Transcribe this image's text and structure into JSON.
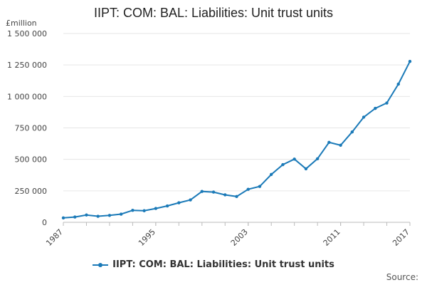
{
  "title": "IIPT: COM: BAL: Liabilities: Unit trust units",
  "legend_label": "IIPT: COM: BAL: Liabilities: Unit trust units",
  "source_label": "Source:",
  "colors": {
    "series": "#1b7ab8",
    "grid": "#e6e6e6",
    "axis": "#bbbbbb"
  },
  "chart_data": {
    "type": "line",
    "title": "IIPT: COM: BAL: Liabilities: Unit trust units",
    "ylabel": "£million",
    "xlabel": "",
    "ylim": [
      0,
      1500000
    ],
    "xlim": [
      1987,
      2017
    ],
    "grid": true,
    "legend_position": "bottom",
    "y_ticks": [
      0,
      250000,
      500000,
      750000,
      1000000,
      1250000,
      1500000
    ],
    "y_tick_labels": [
      "0",
      "250 000",
      "500 000",
      "750 000",
      "1 000 000",
      "1 250 000",
      "1 500 000"
    ],
    "x_tick_labels": [
      "1987",
      "1995",
      "2003",
      "2011",
      "2017"
    ],
    "x_ticks": [
      1987,
      1995,
      2003,
      2011,
      2017
    ],
    "series": [
      {
        "name": "IIPT: COM: BAL: Liabilities: Unit trust units",
        "x": [
          1987,
          1988,
          1989,
          1990,
          1991,
          1992,
          1993,
          1994,
          1995,
          1996,
          1997,
          1998,
          1999,
          2000,
          2001,
          2002,
          2003,
          2004,
          2005,
          2006,
          2007,
          2008,
          2009,
          2010,
          2011,
          2012,
          2013,
          2014,
          2015,
          2016,
          2017
        ],
        "values": [
          35000,
          42000,
          58000,
          48000,
          55000,
          65000,
          95000,
          92000,
          110000,
          130000,
          155000,
          178000,
          245000,
          240000,
          218000,
          205000,
          262000,
          285000,
          380000,
          458000,
          502000,
          425000,
          505000,
          635000,
          612000,
          718000,
          835000,
          905000,
          948000,
          1098000,
          1278000
        ]
      }
    ]
  }
}
